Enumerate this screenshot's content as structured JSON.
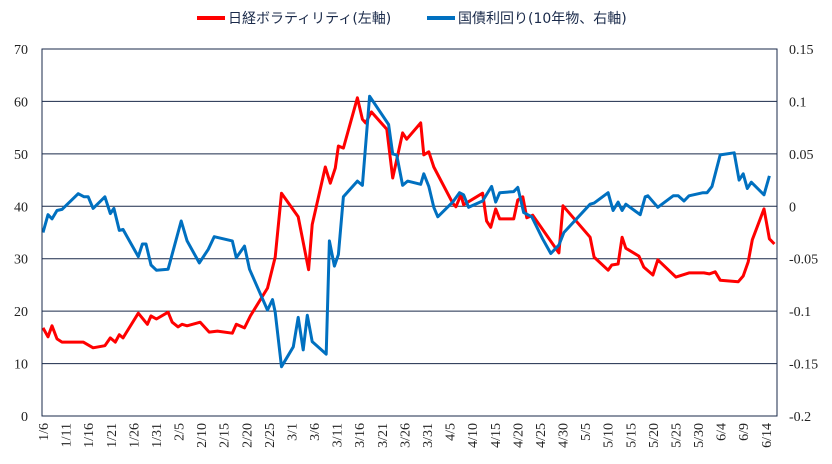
{
  "chart_data": {
    "type": "line",
    "title": "",
    "xlabel": "",
    "ylabel": "",
    "y2label": "",
    "x_unit": "days since 1/6",
    "xlim": [
      0,
      162.7
    ],
    "ylim": [
      0,
      70
    ],
    "y2lim": [
      -0.2,
      0.15
    ],
    "grid": true,
    "legend_position": "top-center",
    "x_tick_labels": [
      "1/6",
      "1/11",
      "1/16",
      "1/21",
      "1/26",
      "1/31",
      "2/5",
      "2/10",
      "2/15",
      "2/20",
      "2/25",
      "3/1",
      "3/6",
      "3/11",
      "3/16",
      "3/21",
      "3/26",
      "3/31",
      "4/5",
      "4/10",
      "4/15",
      "4/20",
      "4/25",
      "4/30",
      "5/5",
      "5/10",
      "5/15",
      "5/20",
      "5/25",
      "5/30",
      "6/4",
      "6/9",
      "6/14"
    ],
    "y_ticks": [
      0,
      10,
      20,
      30,
      40,
      50,
      60,
      70
    ],
    "y_tick_labels": [
      "0",
      "10",
      "20",
      "30",
      "40",
      "50",
      "60",
      "70"
    ],
    "y2_ticks": [
      -0.2,
      -0.15,
      -0.1,
      -0.05,
      0,
      0.05,
      0.1,
      0.15
    ],
    "y2_tick_labels": [
      "-0.2",
      "-0.15",
      "-0.1",
      "-0.05",
      "0",
      "0.05",
      "0.1",
      "0.15"
    ],
    "series": [
      {
        "name": "日経ボラティリティ(左軸)",
        "axis": "left",
        "color": "#ff0000",
        "points": [
          [
            0,
            16.8
          ],
          [
            1.1,
            15.1
          ],
          [
            2.0,
            17.2
          ],
          [
            3.1,
            14.7
          ],
          [
            4.2,
            14.1
          ],
          [
            8.9,
            14.1
          ],
          [
            11.1,
            13.0
          ],
          [
            13.7,
            13.4
          ],
          [
            14.9,
            14.9
          ],
          [
            16.0,
            14.1
          ],
          [
            16.9,
            15.5
          ],
          [
            17.7,
            14.9
          ],
          [
            21.1,
            19.6
          ],
          [
            23.1,
            17.5
          ],
          [
            23.9,
            19.1
          ],
          [
            25.1,
            18.5
          ],
          [
            27.7,
            19.8
          ],
          [
            28.6,
            17.9
          ],
          [
            29.9,
            17.0
          ],
          [
            30.8,
            17.5
          ],
          [
            31.9,
            17.2
          ],
          [
            34.8,
            17.9
          ],
          [
            36.8,
            16.0
          ],
          [
            38.6,
            16.2
          ],
          [
            41.9,
            15.8
          ],
          [
            42.8,
            17.5
          ],
          [
            44.6,
            16.8
          ],
          [
            45.9,
            19.1
          ],
          [
            49.7,
            24.4
          ],
          [
            51.4,
            30.3
          ],
          [
            52.8,
            42.5
          ],
          [
            56.5,
            38.0
          ],
          [
            58.8,
            27.9
          ],
          [
            59.6,
            36.5
          ],
          [
            62.5,
            47.5
          ],
          [
            63.6,
            44.4
          ],
          [
            64.7,
            47.3
          ],
          [
            65.4,
            51.5
          ],
          [
            66.5,
            51.1
          ],
          [
            69.6,
            60.7
          ],
          [
            70.7,
            56.6
          ],
          [
            71.4,
            55.9
          ],
          [
            72.7,
            58.0
          ],
          [
            76.1,
            54.7
          ],
          [
            77.4,
            45.4
          ],
          [
            79.6,
            54.0
          ],
          [
            80.5,
            52.8
          ],
          [
            83.6,
            55.9
          ],
          [
            84.3,
            49.8
          ],
          [
            85.4,
            50.4
          ],
          [
            86.5,
            47.5
          ],
          [
            90.7,
            40.6
          ],
          [
            91.4,
            39.9
          ],
          [
            92.5,
            42.2
          ],
          [
            93.1,
            40.3
          ],
          [
            97.3,
            42.5
          ],
          [
            98.2,
            37.2
          ],
          [
            99.1,
            36.0
          ],
          [
            100.2,
            39.5
          ],
          [
            101.1,
            37.6
          ],
          [
            104.2,
            37.6
          ],
          [
            105.1,
            41.2
          ],
          [
            106.2,
            41.8
          ],
          [
            107.1,
            37.8
          ],
          [
            108.4,
            38.3
          ],
          [
            114.2,
            31.1
          ],
          [
            115.1,
            40.1
          ],
          [
            121.1,
            34.1
          ],
          [
            122.0,
            30.3
          ],
          [
            125.1,
            27.8
          ],
          [
            125.9,
            28.8
          ],
          [
            127.3,
            29.0
          ],
          [
            128.2,
            34.1
          ],
          [
            129.0,
            32.0
          ],
          [
            131.9,
            30.5
          ],
          [
            133.0,
            28.4
          ],
          [
            135.0,
            26.9
          ],
          [
            136.1,
            29.8
          ],
          [
            140.1,
            26.5
          ],
          [
            143.0,
            27.3
          ],
          [
            146.3,
            27.3
          ],
          [
            147.5,
            27.1
          ],
          [
            148.8,
            27.5
          ],
          [
            149.9,
            25.9
          ],
          [
            153.9,
            25.6
          ],
          [
            155.0,
            26.7
          ],
          [
            156.1,
            29.4
          ],
          [
            157.0,
            33.6
          ],
          [
            159.6,
            39.5
          ],
          [
            160.8,
            33.8
          ],
          [
            161.9,
            32.8
          ]
        ]
      },
      {
        "name": "国債利回り(10年物、右軸)",
        "axis": "right",
        "color": "#0070c0",
        "points": [
          [
            0,
            -0.025
          ],
          [
            1.1,
            -0.008
          ],
          [
            2.0,
            -0.012
          ],
          [
            3.1,
            -0.004
          ],
          [
            4.2,
            -0.003
          ],
          [
            7.8,
            0.012
          ],
          [
            9.1,
            0.009
          ],
          [
            10.0,
            0.009
          ],
          [
            11.1,
            -0.002
          ],
          [
            13.7,
            0.009
          ],
          [
            14.9,
            -0.007
          ],
          [
            15.7,
            -0.002
          ],
          [
            16.9,
            -0.023
          ],
          [
            17.7,
            -0.022
          ],
          [
            21.1,
            -0.048
          ],
          [
            22.0,
            -0.036
          ],
          [
            22.8,
            -0.036
          ],
          [
            23.9,
            -0.056
          ],
          [
            25.1,
            -0.061
          ],
          [
            27.7,
            -0.06
          ],
          [
            30.6,
            -0.014
          ],
          [
            31.9,
            -0.033
          ],
          [
            34.6,
            -0.054
          ],
          [
            36.6,
            -0.041
          ],
          [
            37.9,
            -0.029
          ],
          [
            41.9,
            -0.033
          ],
          [
            42.8,
            -0.049
          ],
          [
            44.6,
            -0.038
          ],
          [
            45.7,
            -0.06
          ],
          [
            49.7,
            -0.099
          ],
          [
            50.8,
            -0.089
          ],
          [
            51.4,
            -0.101
          ],
          [
            52.8,
            -0.153
          ],
          [
            55.4,
            -0.134
          ],
          [
            56.5,
            -0.106
          ],
          [
            57.6,
            -0.137
          ],
          [
            58.5,
            -0.104
          ],
          [
            59.6,
            -0.129
          ],
          [
            62.7,
            -0.141
          ],
          [
            63.4,
            -0.033
          ],
          [
            64.5,
            -0.057
          ],
          [
            65.4,
            -0.046
          ],
          [
            66.5,
            0.009
          ],
          [
            69.6,
            0.024
          ],
          [
            70.7,
            0.02
          ],
          [
            72.3,
            0.105
          ],
          [
            76.5,
            0.078
          ],
          [
            77.4,
            0.05
          ],
          [
            78.3,
            0.049
          ],
          [
            79.6,
            0.02
          ],
          [
            80.7,
            0.024
          ],
          [
            83.6,
            0.021
          ],
          [
            84.3,
            0.031
          ],
          [
            85.4,
            0.019
          ],
          [
            86.5,
            -0.001
          ],
          [
            87.4,
            -0.01
          ],
          [
            90.7,
            0.004
          ],
          [
            92.2,
            0.013
          ],
          [
            93.1,
            0.011
          ],
          [
            94.2,
            -0.001
          ],
          [
            97.3,
            0.005
          ],
          [
            99.3,
            0.019
          ],
          [
            100.2,
            0.004
          ],
          [
            101.1,
            0.013
          ],
          [
            104.2,
            0.014
          ],
          [
            105.1,
            0.018
          ],
          [
            106.4,
            -0.006
          ],
          [
            108.2,
            -0.01
          ],
          [
            110.6,
            -0.031
          ],
          [
            112.4,
            -0.045
          ],
          [
            114.2,
            -0.037
          ],
          [
            115.3,
            -0.025
          ],
          [
            121.1,
            0.002
          ],
          [
            122.0,
            0.003
          ],
          [
            125.1,
            0.013
          ],
          [
            126.2,
            -0.004
          ],
          [
            127.3,
            0.004
          ],
          [
            128.2,
            -0.004
          ],
          [
            129.0,
            0.002
          ],
          [
            132.2,
            -0.008
          ],
          [
            133.3,
            0.009
          ],
          [
            133.9,
            0.01
          ],
          [
            136.1,
            -0.001
          ],
          [
            139.5,
            0.01
          ],
          [
            140.6,
            0.01
          ],
          [
            141.9,
            0.005
          ],
          [
            143.0,
            0.01
          ],
          [
            146.1,
            0.013
          ],
          [
            147.0,
            0.013
          ],
          [
            148.1,
            0.019
          ],
          [
            149.9,
            0.049
          ],
          [
            153.0,
            0.051
          ],
          [
            154.1,
            0.025
          ],
          [
            155.0,
            0.031
          ],
          [
            155.9,
            0.017
          ],
          [
            156.8,
            0.023
          ],
          [
            159.6,
            0.011
          ],
          [
            160.8,
            0.029
          ]
        ]
      }
    ]
  }
}
